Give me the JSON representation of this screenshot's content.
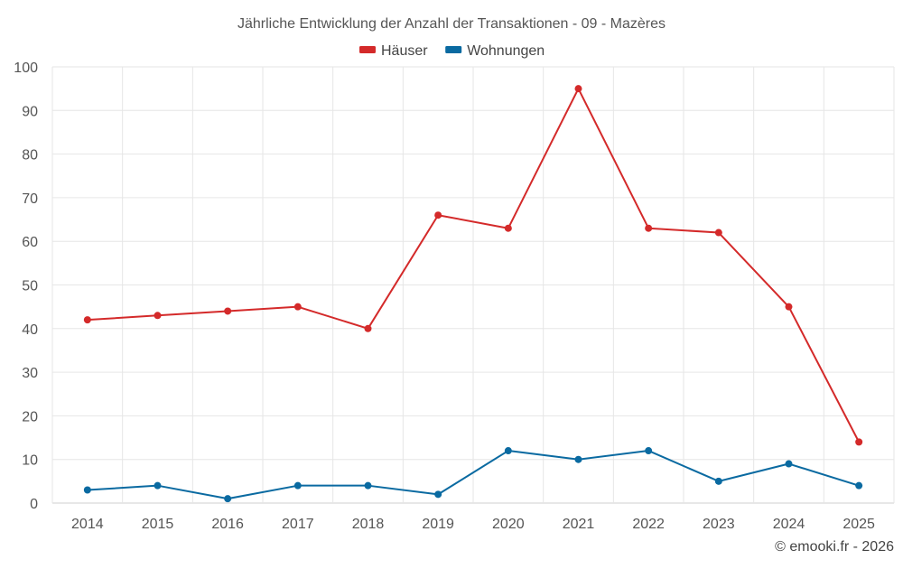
{
  "chart_data": {
    "type": "line",
    "title": "Jährliche Entwicklung der Anzahl der Transaktionen - 09 - Mazères",
    "categories": [
      "2014",
      "2015",
      "2016",
      "2017",
      "2018",
      "2019",
      "2020",
      "2021",
      "2022",
      "2023",
      "2024",
      "2025"
    ],
    "series": [
      {
        "name": "Häuser",
        "color": "#d42a2a",
        "values": [
          42,
          43,
          44,
          45,
          40,
          66,
          63,
          95,
          63,
          62,
          45,
          14
        ]
      },
      {
        "name": "Wohnungen",
        "color": "#0a6aa1",
        "values": [
          3,
          4,
          1,
          4,
          4,
          2,
          12,
          10,
          12,
          5,
          9,
          4
        ]
      }
    ],
    "ylim": [
      0,
      100
    ],
    "yticks": [
      0,
      10,
      20,
      30,
      40,
      50,
      60,
      70,
      80,
      90,
      100
    ],
    "xlabel": "",
    "ylabel": "",
    "grid": true,
    "legend": "top-center"
  },
  "credit": "© emooki.fr - 2026"
}
